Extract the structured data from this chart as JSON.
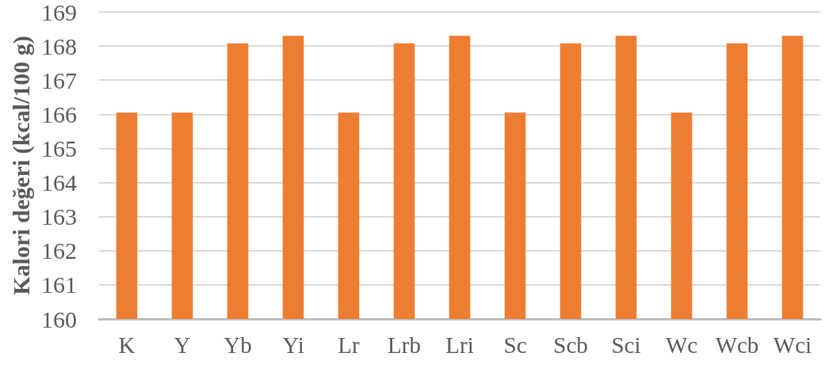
{
  "chart_data": {
    "type": "bar",
    "ylabel": "Kalori değeri (kcal/100 g)",
    "categories": [
      "K",
      "Y",
      "Yb",
      "Yi",
      "Lr",
      "Lrb",
      "Lri",
      "Sc",
      "Scb",
      "Sci",
      "Wc",
      "Wcb",
      "Wci"
    ],
    "values": [
      166.05,
      166.05,
      168.08,
      168.3,
      166.05,
      168.08,
      168.3,
      166.05,
      168.08,
      168.3,
      166.05,
      168.08,
      168.3
    ],
    "color": "#ed7d31",
    "ylim": [
      160,
      169
    ],
    "yticks": [
      160,
      161,
      162,
      163,
      164,
      165,
      166,
      167,
      168,
      169
    ],
    "grid": "y"
  }
}
